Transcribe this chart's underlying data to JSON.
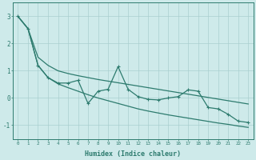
{
  "xlabel": "Humidex (Indice chaleur)",
  "bg_color": "#ceeaea",
  "line_color": "#2d7b6e",
  "grid_color": "#aacfcf",
  "xlim": [
    -0.5,
    23.5
  ],
  "ylim": [
    -1.5,
    3.5
  ],
  "xticks": [
    0,
    1,
    2,
    3,
    4,
    5,
    6,
    7,
    8,
    9,
    10,
    11,
    12,
    13,
    14,
    15,
    16,
    17,
    18,
    19,
    20,
    21,
    22,
    23
  ],
  "yticks": [
    -1,
    0,
    1,
    2,
    3
  ],
  "x_data": [
    0,
    1,
    2,
    3,
    4,
    5,
    6,
    7,
    8,
    9,
    10,
    11,
    12,
    13,
    14,
    15,
    16,
    17,
    18,
    19,
    20,
    21,
    22,
    23
  ],
  "y_main": [
    3.0,
    2.55,
    1.2,
    0.75,
    0.55,
    0.55,
    0.65,
    -0.2,
    0.25,
    0.32,
    1.15,
    0.32,
    0.05,
    -0.05,
    -0.07,
    0.0,
    0.05,
    0.3,
    0.25,
    -0.35,
    -0.4,
    -0.6,
    -0.85,
    -0.9
  ],
  "y_upper": [
    3.0,
    2.55,
    1.5,
    1.2,
    1.0,
    0.9,
    0.82,
    0.75,
    0.68,
    0.62,
    0.56,
    0.5,
    0.44,
    0.38,
    0.32,
    0.26,
    0.2,
    0.14,
    0.08,
    0.02,
    -0.04,
    -0.1,
    -0.16,
    -0.22
  ],
  "y_lower": [
    3.0,
    2.55,
    1.2,
    0.75,
    0.52,
    0.38,
    0.25,
    0.12,
    0.0,
    -0.1,
    -0.2,
    -0.3,
    -0.4,
    -0.48,
    -0.55,
    -0.62,
    -0.68,
    -0.74,
    -0.8,
    -0.86,
    -0.92,
    -0.97,
    -1.03,
    -1.08
  ],
  "x_tick_labels": [
    "0",
    "1",
    "2",
    "3",
    "4",
    "5",
    "6",
    "7",
    "8",
    "9",
    "10",
    "11",
    "12",
    "13",
    "14",
    "15",
    "16",
    "17",
    "18",
    "19",
    "20",
    "21",
    "22",
    "23"
  ]
}
